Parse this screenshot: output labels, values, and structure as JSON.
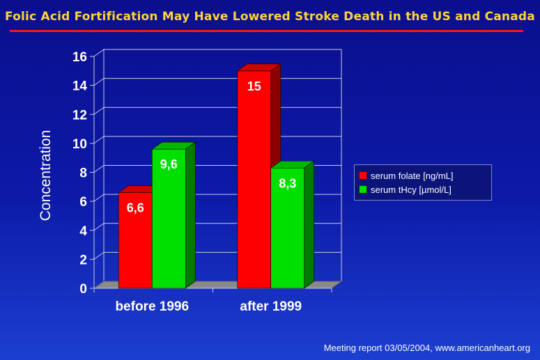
{
  "slide": {
    "title": "Folic Acid Fortification May Have Lowered Stroke Death in the US and Canada",
    "footer": "Meeting report 03/05/2004, www.americanheart.org"
  },
  "colors": {
    "title": "#ffd23a",
    "title_rule": "#ff1515",
    "folate": "#ff0000",
    "tHcy": "#00e000"
  },
  "chart_data": {
    "type": "bar",
    "categories": [
      "before 1996",
      "after 1999"
    ],
    "series": [
      {
        "name": "serum folate [ng/mL]",
        "values": [
          6.6,
          15
        ],
        "value_labels": [
          "6,6",
          "15"
        ],
        "color": "#ff0000"
      },
      {
        "name": "serum tHcy [µmol/L]",
        "values": [
          9.6,
          8.3
        ],
        "value_labels": [
          "9,6",
          "8,3"
        ],
        "color": "#00e000"
      }
    ],
    "ylabel": "Concentration",
    "xlabel": "",
    "ylim": [
      0,
      16
    ],
    "yticks": [
      0,
      2,
      4,
      6,
      8,
      10,
      12,
      14,
      16
    ],
    "grid": true,
    "legend_position": "right",
    "style": "3d"
  }
}
